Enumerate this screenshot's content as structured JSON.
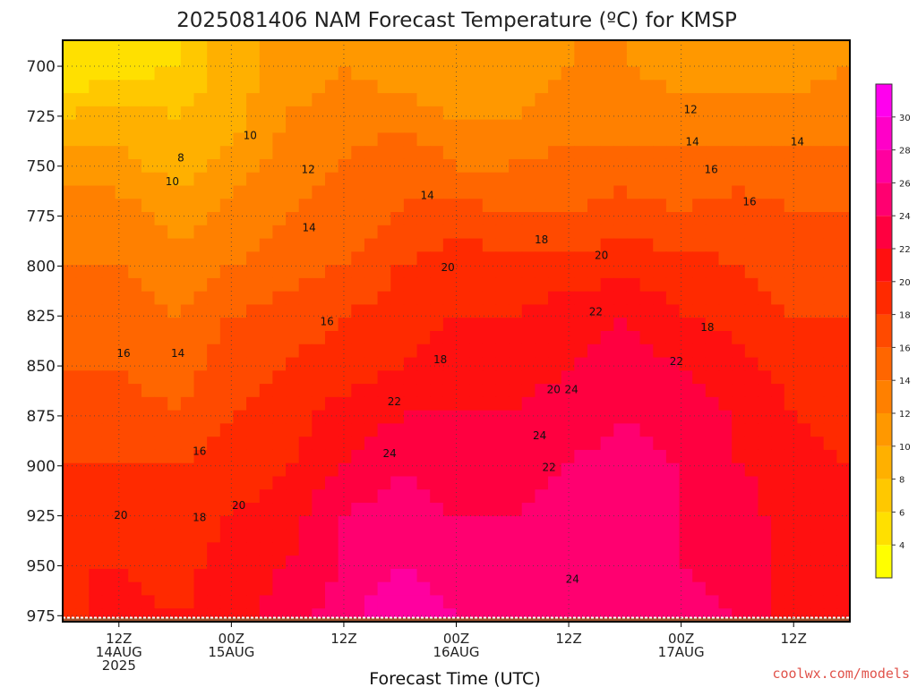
{
  "chart_data": {
    "type": "heatmap",
    "title": "2025081406 NAM Forecast Temperature (ºC) for KMSP",
    "xlabel": "Forecast Time (UTC)",
    "ylabel": "",
    "credit": "coolwx.com/models",
    "x_unit": "hours since 2025-08-14 06Z",
    "x_range": [
      6,
      90
    ],
    "x_ticks": [
      {
        "hour": 12,
        "lines": [
          "12Z",
          "14AUG",
          "2025"
        ]
      },
      {
        "hour": 24,
        "lines": [
          "00Z",
          "15AUG"
        ]
      },
      {
        "hour": 36,
        "lines": [
          "12Z"
        ]
      },
      {
        "hour": 48,
        "lines": [
          "00Z",
          "16AUG"
        ]
      },
      {
        "hour": 60,
        "lines": [
          "12Z"
        ]
      },
      {
        "hour": 72,
        "lines": [
          "00Z",
          "17AUG"
        ]
      },
      {
        "hour": 84,
        "lines": [
          "12Z"
        ]
      }
    ],
    "y_unit": "hPa",
    "y_range": [
      687,
      978
    ],
    "y_ticks": [
      700,
      725,
      750,
      775,
      800,
      825,
      850,
      875,
      900,
      925,
      950,
      975
    ],
    "grid": true,
    "levels": [
      700,
      725,
      750,
      775,
      800,
      825,
      850,
      875,
      900,
      925,
      950,
      975
    ],
    "times": [
      6,
      12,
      18,
      24,
      30,
      36,
      42,
      48,
      54,
      60,
      66,
      72,
      78,
      84,
      90
    ],
    "values": [
      [
        4,
        5,
        6,
        9,
        11,
        12,
        11,
        10,
        11,
        12,
        12,
        11,
        11,
        11,
        12
      ],
      [
        8,
        9,
        8,
        9,
        12,
        13,
        13,
        12,
        12,
        13,
        13,
        13,
        13,
        13,
        13
      ],
      [
        11,
        11,
        9,
        11,
        13,
        14,
        16,
        14,
        14,
        15,
        15,
        15,
        15,
        15,
        15
      ],
      [
        13,
        13,
        11,
        13,
        14,
        15,
        16,
        17,
        16,
        16,
        17,
        16,
        17,
        16,
        16
      ],
      [
        14,
        14,
        13,
        14,
        15,
        16,
        18,
        19,
        19,
        19,
        19,
        19,
        18,
        17,
        17
      ],
      [
        15,
        15,
        14,
        16,
        17,
        18,
        19,
        20,
        20,
        21,
        22,
        20,
        19,
        18,
        18
      ],
      [
        16,
        16,
        15,
        17,
        18,
        19,
        20,
        21,
        21,
        22,
        23,
        22,
        21,
        19,
        18
      ],
      [
        17,
        17,
        16,
        18,
        19,
        21,
        22,
        22,
        22,
        23,
        24,
        23,
        22,
        20,
        19
      ],
      [
        18,
        18,
        18,
        19,
        20,
        22,
        24,
        23,
        23,
        24,
        25,
        24,
        22,
        21,
        20
      ],
      [
        19,
        19,
        19,
        20,
        21,
        24,
        25,
        24,
        24,
        25,
        25,
        24,
        23,
        21,
        20
      ],
      [
        20,
        20,
        19,
        21,
        22,
        24,
        26,
        25,
        24,
        25,
        25,
        24,
        23,
        21,
        20
      ],
      [
        19,
        21,
        20,
        21,
        23,
        25,
        28,
        26,
        25,
        25,
        25,
        25,
        24,
        21,
        20
      ]
    ],
    "contour_labels": [
      {
        "text": "8",
        "t": 18.6,
        "p": 746
      },
      {
        "text": "10",
        "t": 17.7,
        "p": 758
      },
      {
        "text": "10",
        "t": 26.0,
        "p": 735
      },
      {
        "text": "12",
        "t": 32.2,
        "p": 752
      },
      {
        "text": "12",
        "t": 73.0,
        "p": 722
      },
      {
        "text": "14",
        "t": 32.3,
        "p": 781
      },
      {
        "text": "14",
        "t": 44.9,
        "p": 765
      },
      {
        "text": "14",
        "t": 73.2,
        "p": 738
      },
      {
        "text": "14",
        "t": 84.4,
        "p": 738
      },
      {
        "text": "16",
        "t": 34.2,
        "p": 828
      },
      {
        "text": "16",
        "t": 12.5,
        "p": 844
      },
      {
        "text": "14",
        "t": 18.3,
        "p": 844
      },
      {
        "text": "16",
        "t": 20.6,
        "p": 893
      },
      {
        "text": "16",
        "t": 75.2,
        "p": 752
      },
      {
        "text": "16",
        "t": 79.3,
        "p": 768
      },
      {
        "text": "18",
        "t": 57.1,
        "p": 787
      },
      {
        "text": "18",
        "t": 46.3,
        "p": 847
      },
      {
        "text": "18",
        "t": 20.6,
        "p": 926
      },
      {
        "text": "18",
        "t": 74.8,
        "p": 831
      },
      {
        "text": "20",
        "t": 47.1,
        "p": 801
      },
      {
        "text": "20",
        "t": 63.5,
        "p": 795
      },
      {
        "text": "20",
        "t": 12.2,
        "p": 925
      },
      {
        "text": "20",
        "t": 24.8,
        "p": 920
      },
      {
        "text": "20",
        "t": 58.4,
        "p": 862
      },
      {
        "text": "22",
        "t": 62.9,
        "p": 823
      },
      {
        "text": "22",
        "t": 71.5,
        "p": 848
      },
      {
        "text": "22",
        "t": 41.4,
        "p": 868
      },
      {
        "text": "22",
        "t": 57.9,
        "p": 901
      },
      {
        "text": "24",
        "t": 40.9,
        "p": 894
      },
      {
        "text": "24",
        "t": 60.3,
        "p": 862
      },
      {
        "text": "24",
        "t": 56.9,
        "p": 885
      },
      {
        "text": "24",
        "t": 60.4,
        "p": 957
      }
    ],
    "colorbar": {
      "ticks": [
        4,
        6,
        8,
        10,
        12,
        14,
        16,
        18,
        20,
        22,
        24,
        26,
        28,
        30
      ],
      "bins": [
        {
          "min": 2,
          "max": 4,
          "color": "#ffff00"
        },
        {
          "min": 4,
          "max": 6,
          "color": "#ffe000"
        },
        {
          "min": 6,
          "max": 8,
          "color": "#ffc800"
        },
        {
          "min": 8,
          "max": 10,
          "color": "#ffb000"
        },
        {
          "min": 10,
          "max": 12,
          "color": "#ff9800"
        },
        {
          "min": 12,
          "max": 14,
          "color": "#ff8000"
        },
        {
          "min": 14,
          "max": 16,
          "color": "#ff6600"
        },
        {
          "min": 16,
          "max": 18,
          "color": "#ff4a00"
        },
        {
          "min": 18,
          "max": 20,
          "color": "#ff2a00"
        },
        {
          "min": 20,
          "max": 22,
          "color": "#ff1010"
        },
        {
          "min": 22,
          "max": 24,
          "color": "#ff0040"
        },
        {
          "min": 24,
          "max": 26,
          "color": "#ff0070"
        },
        {
          "min": 26,
          "max": 28,
          "color": "#ff009f"
        },
        {
          "min": 28,
          "max": 30,
          "color": "#ff00c8"
        },
        {
          "min": 30,
          "max": 32,
          "color": "#ff00ee"
        }
      ]
    },
    "ground_color": "#a0522d"
  }
}
